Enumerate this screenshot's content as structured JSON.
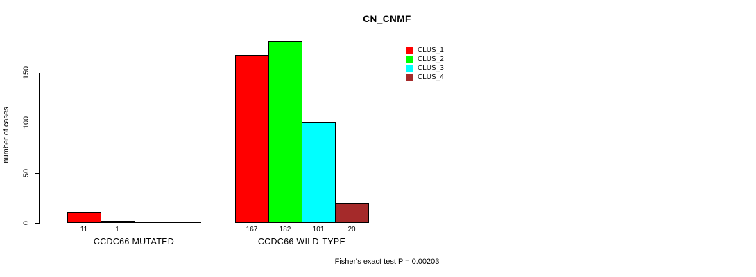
{
  "chart_data": {
    "type": "bar",
    "title": "CN_CNMF",
    "xlabel": "",
    "ylabel": "number of cases",
    "ylim": [
      0,
      185
    ],
    "yticks": [
      0,
      50,
      100,
      150
    ],
    "grid": false,
    "legend_position": "top-right",
    "categories": [
      "CCDC66 MUTATED",
      "CCDC66 WILD-TYPE"
    ],
    "series": [
      {
        "name": "CLUS_1",
        "color": "#FF0000",
        "values": [
          11,
          167
        ]
      },
      {
        "name": "CLUS_2",
        "color": "#00FF00",
        "values": [
          1,
          182
        ]
      },
      {
        "name": "CLUS_3",
        "color": "#00FFFF",
        "values": [
          0,
          101
        ]
      },
      {
        "name": "CLUS_4",
        "color": "#A52A2A",
        "values": [
          0,
          20
        ]
      }
    ],
    "bar_value_labels": [
      [
        "11",
        "1",
        "",
        ""
      ],
      [
        "167",
        "182",
        "101",
        "20"
      ]
    ],
    "annotation": "Fisher's exact test P = 0.00203"
  }
}
